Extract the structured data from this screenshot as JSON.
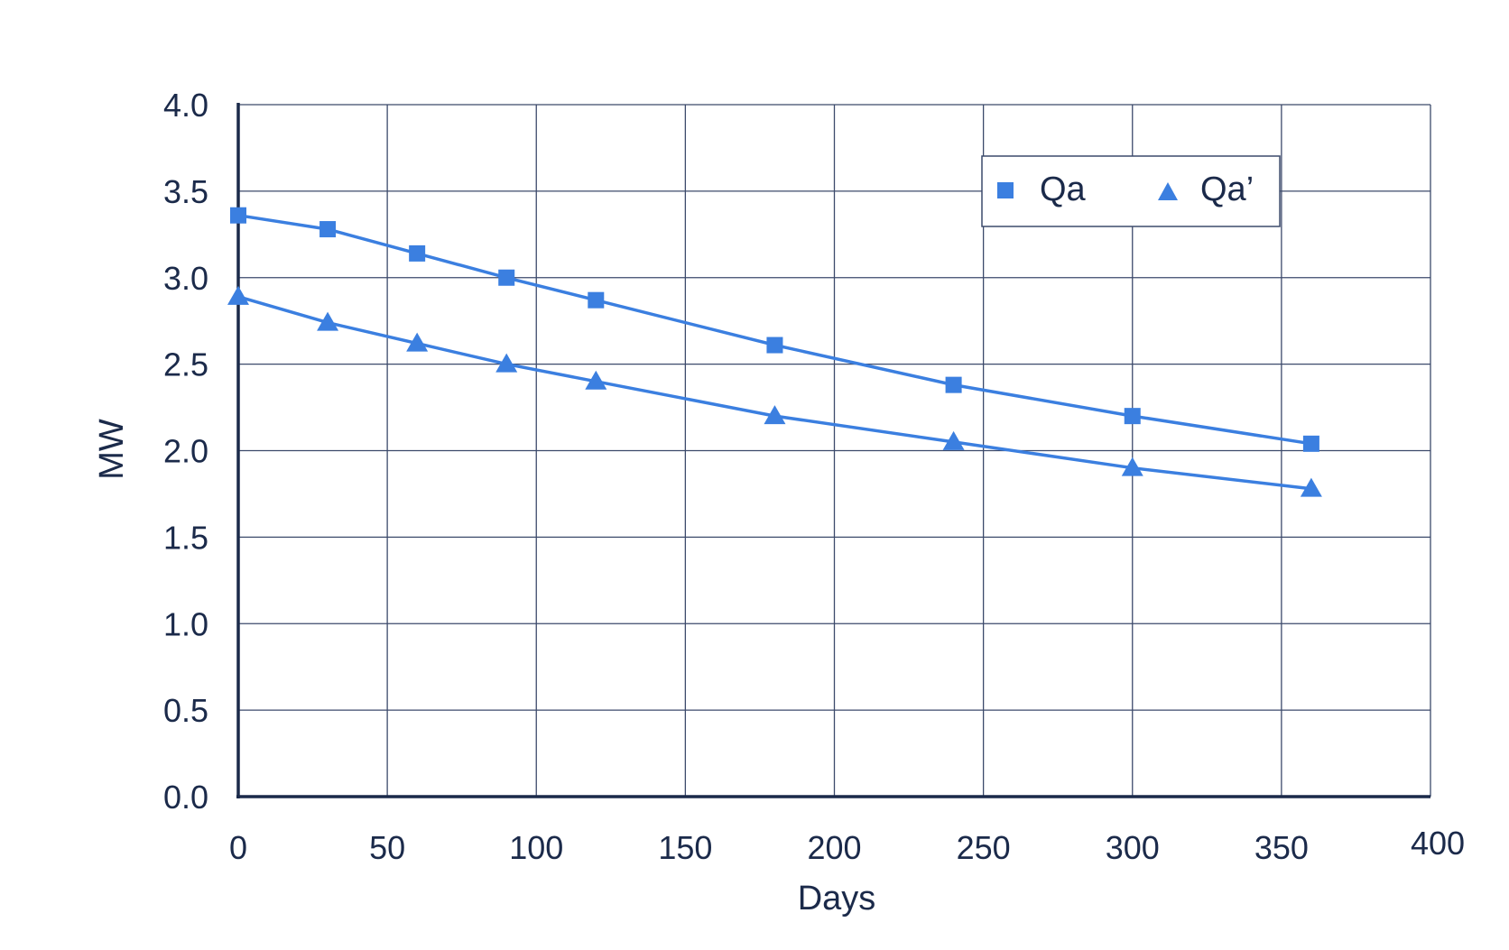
{
  "chart_data": {
    "type": "line",
    "title": "",
    "xlabel": "Days",
    "ylabel": "MW",
    "xlim": [
      0,
      400
    ],
    "ylim": [
      0,
      4.0
    ],
    "x_ticks": [
      "0",
      "50",
      "100",
      "150",
      "200",
      "250",
      "300",
      "350",
      "400"
    ],
    "y_ticks": [
      "0.0",
      "0.5",
      "1.0",
      "1.5",
      "2.0",
      "2.5",
      "3.0",
      "3.5",
      "4.0"
    ],
    "grid": true,
    "legend_position": "top-right",
    "series": [
      {
        "name": "Qa",
        "marker": "square",
        "color": "#3b7fe0",
        "x": [
          0,
          30,
          60,
          90,
          120,
          180,
          240,
          300,
          360
        ],
        "y": [
          3.36,
          3.28,
          3.14,
          3.0,
          2.87,
          2.61,
          2.38,
          2.2,
          2.04
        ]
      },
      {
        "name": "Qa’",
        "marker": "triangle",
        "color": "#3b7fe0",
        "x": [
          0,
          30,
          60,
          90,
          120,
          180,
          240,
          300,
          360
        ],
        "y": [
          2.89,
          2.74,
          2.62,
          2.5,
          2.4,
          2.2,
          2.05,
          1.9,
          1.78
        ]
      }
    ]
  },
  "colors": {
    "axis": "#1b2a4a",
    "grid": "#3c4a6b",
    "series": "#3b7fe0"
  }
}
